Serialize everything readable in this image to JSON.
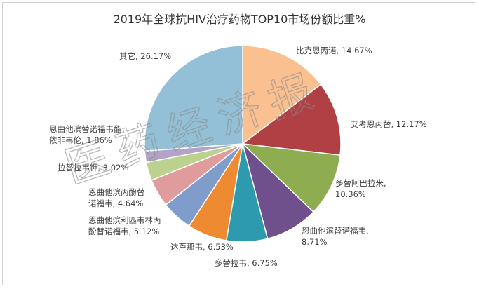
{
  "chart_data": {
    "type": "pie",
    "title": "2019年全球抗HIV治疗药物TOP10市场份额比重%",
    "slices": [
      {
        "name": "比克恩丙诺",
        "value": 14.67,
        "label": "比克恩丙诺, 14.67%",
        "color": "#fac090"
      },
      {
        "name": "艾考恩丙替",
        "value": 12.17,
        "label": "艾考恩丙替, 12.17%",
        "color": "#b04044"
      },
      {
        "name": "多替阿巴拉米",
        "value": 10.36,
        "label": "多替阿巴拉米,|10.36%",
        "color": "#8eac50"
      },
      {
        "name": "恩曲他滨替诺福韦",
        "value": 8.71,
        "label": "恩曲他滨替诺福韦,|8.71%",
        "color": "#70508c"
      },
      {
        "name": "多替拉韦",
        "value": 6.75,
        "label": "多替拉韦, 6.75%",
        "color": "#2e9ab0"
      },
      {
        "name": "达芦那韦",
        "value": 6.53,
        "label": "达芦那韦, 6.53%",
        "color": "#ed8a32"
      },
      {
        "name": "恩曲他滨利匹韦林丙酚替诺福韦",
        "value": 5.12,
        "label": "恩曲他滨利匹韦林丙|酚替诺福韦, 5.12%",
        "color": "#7f9cca"
      },
      {
        "name": "恩曲他滨丙酚替诺福韦",
        "value": 4.64,
        "label": "恩曲他滨丙酚替|诺福韦, 4.64%",
        "color": "#e09c9c"
      },
      {
        "name": "拉替拉韦钾",
        "value": 3.02,
        "label": "拉替拉韦钾, 3.02%",
        "color": "#bcd18e"
      },
      {
        "name": "恩曲他滨替诺福韦酯依非韦伦",
        "value": 1.86,
        "label": "恩曲他滨替诺福韦酯|依非韦伦, 1.86%",
        "color": "#b3a3c8"
      },
      {
        "name": "其它",
        "value": 26.17,
        "label": "其它, 26.17%",
        "color": "#93c0d6"
      }
    ]
  },
  "watermark": {
    "text": "医药经济报"
  }
}
